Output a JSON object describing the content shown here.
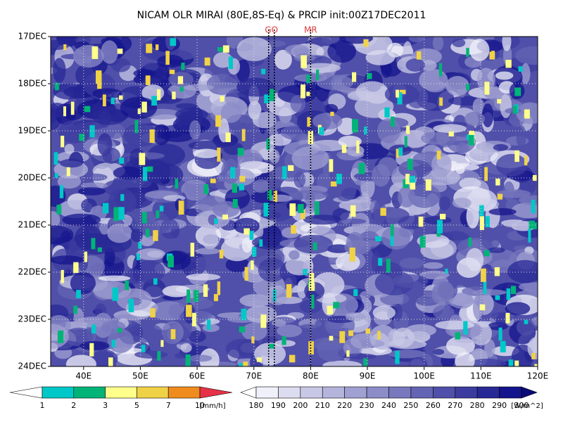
{
  "chart_data": {
    "type": "hovmoller",
    "title": "NICAM OLR MIRAI (80E,8S-Eq) & PRCIP init:00Z17DEC2011",
    "xlim": [
      34.2,
      120
    ],
    "xticks": [
      {
        "value": 40,
        "label": "40E"
      },
      {
        "value": 50,
        "label": "50E"
      },
      {
        "value": 60,
        "label": "60E"
      },
      {
        "value": 70,
        "label": "70E"
      },
      {
        "value": 80,
        "label": "80E"
      },
      {
        "value": 90,
        "label": "90E"
      },
      {
        "value": 100,
        "label": "100E"
      },
      {
        "value": 110,
        "label": "110E"
      },
      {
        "value": 120,
        "label": "120E"
      }
    ],
    "ylim": [
      17,
      24
    ],
    "yticks": [
      {
        "value": 17,
        "label": "17DEC"
      },
      {
        "value": 18,
        "label": "18DEC"
      },
      {
        "value": 19,
        "label": "19DEC"
      },
      {
        "value": 20,
        "label": "20DEC"
      },
      {
        "value": 21,
        "label": "21DEC"
      },
      {
        "value": 22,
        "label": "22DEC"
      },
      {
        "value": 23,
        "label": "23DEC"
      },
      {
        "value": 24,
        "label": "24DEC"
      }
    ],
    "grid": true,
    "markers": [
      {
        "label": "GO",
        "lon": [
          72.6,
          73.6
        ],
        "color": "#e03c3c"
      },
      {
        "label": "MR",
        "lon": [
          80
        ],
        "color": "#e03c3c"
      }
    ],
    "colorbars": [
      {
        "levels": [
          1,
          2,
          3,
          5,
          7,
          10
        ],
        "colors": [
          "#00c8c8",
          "#00b478",
          "#ffff8c",
          "#f0d246",
          "#f08c1e"
        ],
        "under": "#ffffff",
        "over": "#e63246",
        "unit": "[mm/h]"
      },
      {
        "levels": [
          180,
          190,
          200,
          210,
          220,
          230,
          240,
          250,
          260,
          270,
          280,
          290,
          300
        ],
        "colors": [
          "#f0f0fa",
          "#dcdcf0",
          "#c8c8e6",
          "#b4b4dc",
          "#a0a0d2",
          "#8c8cc8",
          "#7878be",
          "#6464b4",
          "#5050aa",
          "#3c3ca0",
          "#282896",
          "#14148c"
        ],
        "under": "#ffffff",
        "over": "#0a0a78",
        "unit": "[W/m^2]"
      }
    ]
  }
}
